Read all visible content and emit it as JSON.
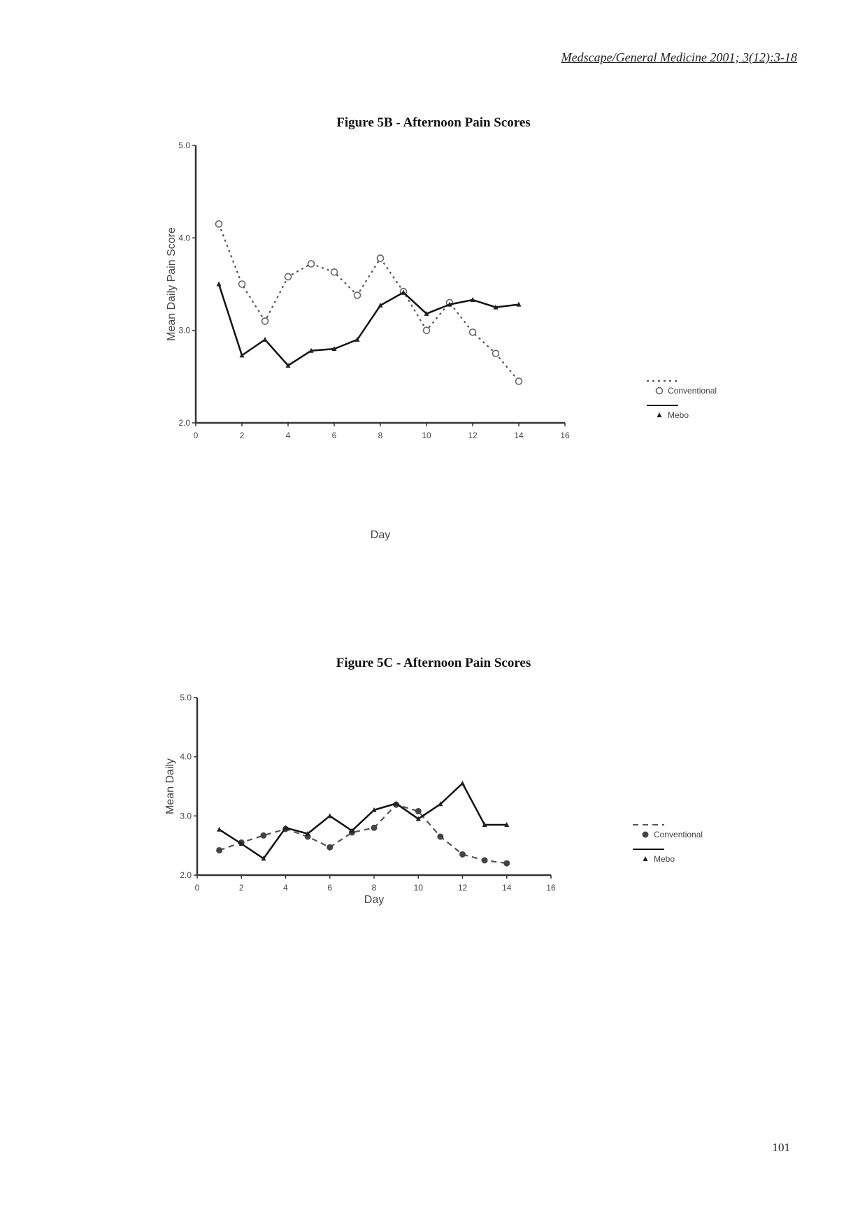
{
  "header": {
    "running_head": "Medscape/General Medicine 2001; 3(12):3-18"
  },
  "page_number": "101",
  "figures": [
    {
      "title": "Figure 5B - Afternoon Pain Scores"
    },
    {
      "title": "Figure 5C - Afternoon Pain Scores"
    }
  ],
  "chart_data": [
    {
      "type": "line",
      "title": "Figure 5B - Afternoon Pain Scores",
      "xlabel": "Day",
      "ylabel": "Mean Daily Pain Score",
      "xlim": [
        0,
        16
      ],
      "ylim": [
        2.0,
        5.0
      ],
      "xticks": [
        "0",
        "2",
        "4",
        "6",
        "8",
        "10",
        "12",
        "14",
        "16"
      ],
      "yticks": [
        "2.0",
        "3.0",
        "4.0",
        "5.0"
      ],
      "grid": false,
      "legend_position": "right",
      "x": [
        1,
        2,
        3,
        4,
        5,
        6,
        7,
        8,
        9,
        10,
        11,
        12,
        13,
        14
      ],
      "series": [
        {
          "name": "Conventional",
          "style": "dotted",
          "marker": "open-circle",
          "values": [
            4.15,
            3.5,
            3.1,
            3.58,
            3.72,
            3.63,
            3.38,
            3.78,
            3.42,
            3.0,
            3.3,
            2.98,
            2.75,
            2.45
          ]
        },
        {
          "name": "Mebo",
          "style": "solid",
          "marker": "triangle",
          "values": [
            3.5,
            2.73,
            2.9,
            2.62,
            2.78,
            2.8,
            2.9,
            3.27,
            3.41,
            3.18,
            3.28,
            3.33,
            3.25,
            3.28
          ]
        }
      ]
    },
    {
      "type": "line",
      "title": "Figure 5C - Afternoon Pain Scores",
      "xlabel": "Day",
      "ylabel": "Mean Daily",
      "xlim": [
        0,
        16
      ],
      "ylim": [
        2.0,
        5.0
      ],
      "xticks": [
        "0",
        "2",
        "4",
        "6",
        "8",
        "10",
        "12",
        "14",
        "16"
      ],
      "yticks": [
        "2.0",
        "3.0",
        "4.0",
        "5.0"
      ],
      "grid": false,
      "legend_position": "right",
      "x": [
        1,
        2,
        3,
        4,
        5,
        6,
        7,
        8,
        9,
        10,
        11,
        12,
        13,
        14
      ],
      "series": [
        {
          "name": "Conventional",
          "style": "dashed",
          "marker": "filled-circle",
          "values": [
            2.42,
            2.55,
            2.67,
            2.78,
            2.65,
            2.47,
            2.72,
            2.8,
            3.19,
            3.08,
            2.65,
            2.35,
            2.25,
            2.2
          ]
        },
        {
          "name": "Mebo",
          "style": "solid",
          "marker": "triangle",
          "values": [
            2.77,
            2.53,
            2.28,
            2.8,
            2.7,
            3.0,
            2.75,
            3.1,
            3.21,
            2.95,
            3.2,
            3.55,
            2.85,
            2.85
          ]
        }
      ]
    }
  ]
}
